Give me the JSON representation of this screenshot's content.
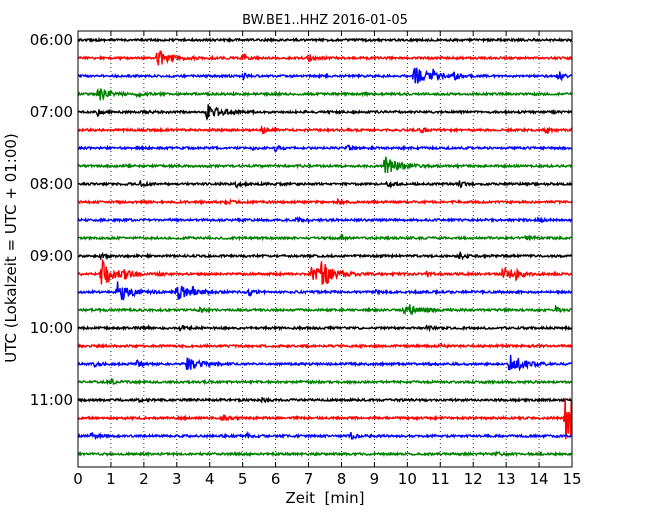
{
  "chart_data": {
    "type": "line",
    "title": "BW.BE1..HHZ 2016-01-05",
    "xlabel": "Zeit  [min]",
    "ylabel": "UTC (Lokalzeit = UTC + 01:00)",
    "xlim": [
      0,
      15
    ],
    "x_ticks": [
      "0",
      "1",
      "2",
      "3",
      "4",
      "5",
      "6",
      "7",
      "8",
      "9",
      "10",
      "11",
      "12",
      "13",
      "14",
      "15"
    ],
    "grid": true,
    "row_interval_min": 15,
    "y_tick_labels": [
      "06:00",
      "07:00",
      "08:00",
      "09:00",
      "10:00",
      "11:00"
    ],
    "row_colors": [
      "#000000",
      "#ff0000",
      "#0000ff",
      "#008000"
    ],
    "rows": [
      {
        "time": "06:00",
        "color": "#000000",
        "events": []
      },
      {
        "time": "06:15",
        "color": "#ff0000",
        "events": [
          [
            2.4,
            9
          ],
          [
            7.0,
            4
          ],
          [
            5.0,
            3
          ]
        ]
      },
      {
        "time": "06:30",
        "color": "#0000ff",
        "events": [
          [
            10.2,
            10
          ],
          [
            10.8,
            6
          ],
          [
            11.4,
            5
          ],
          [
            14.6,
            6
          ],
          [
            5.0,
            3
          ]
        ]
      },
      {
        "time": "06:45",
        "color": "#008000",
        "events": [
          [
            0.6,
            7
          ],
          [
            1.8,
            2
          ]
        ]
      },
      {
        "time": "07:00",
        "color": "#000000",
        "events": [
          [
            3.9,
            8
          ],
          [
            0.6,
            3
          ],
          [
            2.1,
            2
          ]
        ]
      },
      {
        "time": "07:15",
        "color": "#ff0000",
        "events": [
          [
            5.6,
            4
          ],
          [
            10.4,
            3
          ],
          [
            14.2,
            3
          ]
        ]
      },
      {
        "time": "07:30",
        "color": "#0000ff",
        "events": [
          [
            6.0,
            3
          ],
          [
            8.2,
            3
          ],
          [
            5.3,
            2
          ]
        ]
      },
      {
        "time": "07:45",
        "color": "#008000",
        "events": [
          [
            9.3,
            11
          ],
          [
            1.5,
            2
          ]
        ]
      },
      {
        "time": "08:00",
        "color": "#000000",
        "events": [
          [
            1.9,
            3
          ],
          [
            4.8,
            3
          ],
          [
            9.4,
            3
          ],
          [
            11.6,
            3
          ]
        ]
      },
      {
        "time": "08:15",
        "color": "#ff0000",
        "events": [
          [
            4.5,
            2
          ],
          [
            7.9,
            3
          ]
        ]
      },
      {
        "time": "08:30",
        "color": "#0000ff",
        "events": [
          [
            7.0,
            4
          ],
          [
            6.6,
            2
          ],
          [
            14.0,
            2
          ]
        ]
      },
      {
        "time": "08:45",
        "color": "#008000",
        "events": [
          [
            8.0,
            3
          ],
          [
            13.6,
            4
          ]
        ]
      },
      {
        "time": "09:00",
        "color": "#000000",
        "events": [
          [
            11.6,
            4
          ],
          [
            0.7,
            2
          ]
        ]
      },
      {
        "time": "09:15",
        "color": "#ff0000",
        "events": [
          [
            0.7,
            14
          ],
          [
            7.1,
            8
          ],
          [
            7.4,
            11
          ],
          [
            1.4,
            4
          ],
          [
            2.5,
            3
          ],
          [
            10.6,
            3
          ],
          [
            12.9,
            7
          ],
          [
            13.3,
            5
          ]
        ]
      },
      {
        "time": "09:30",
        "color": "#0000ff",
        "events": [
          [
            1.2,
            11
          ],
          [
            3.0,
            8
          ],
          [
            3.5,
            4
          ],
          [
            5.2,
            3
          ],
          [
            9.0,
            2
          ]
        ]
      },
      {
        "time": "09:45",
        "color": "#008000",
        "events": [
          [
            9.9,
            8
          ],
          [
            3.7,
            3
          ],
          [
            14.5,
            3
          ]
        ]
      },
      {
        "time": "10:00",
        "color": "#000000",
        "events": [
          [
            3.1,
            3
          ],
          [
            2.0,
            2
          ],
          [
            10.6,
            2
          ]
        ]
      },
      {
        "time": "10:15",
        "color": "#ff0000",
        "events": [
          [
            11.0,
            2
          ]
        ]
      },
      {
        "time": "10:30",
        "color": "#0000ff",
        "events": [
          [
            13.1,
            11
          ],
          [
            3.3,
            7
          ],
          [
            1.8,
            4
          ],
          [
            0.5,
            3
          ]
        ]
      },
      {
        "time": "10:45",
        "color": "#008000",
        "events": [
          [
            1.0,
            2
          ]
        ]
      },
      {
        "time": "11:00",
        "color": "#000000",
        "events": [
          [
            1.8,
            2
          ],
          [
            5.6,
            2
          ]
        ]
      },
      {
        "time": "11:15",
        "color": "#ff0000",
        "events": [
          [
            14.8,
            26
          ],
          [
            4.4,
            4
          ]
        ]
      },
      {
        "time": "11:30",
        "color": "#0000ff",
        "events": [
          [
            0.4,
            3
          ],
          [
            5.1,
            3
          ],
          [
            8.3,
            4
          ]
        ]
      },
      {
        "time": "11:45",
        "color": "#008000",
        "events": [
          [
            12.7,
            2
          ]
        ]
      }
    ]
  }
}
